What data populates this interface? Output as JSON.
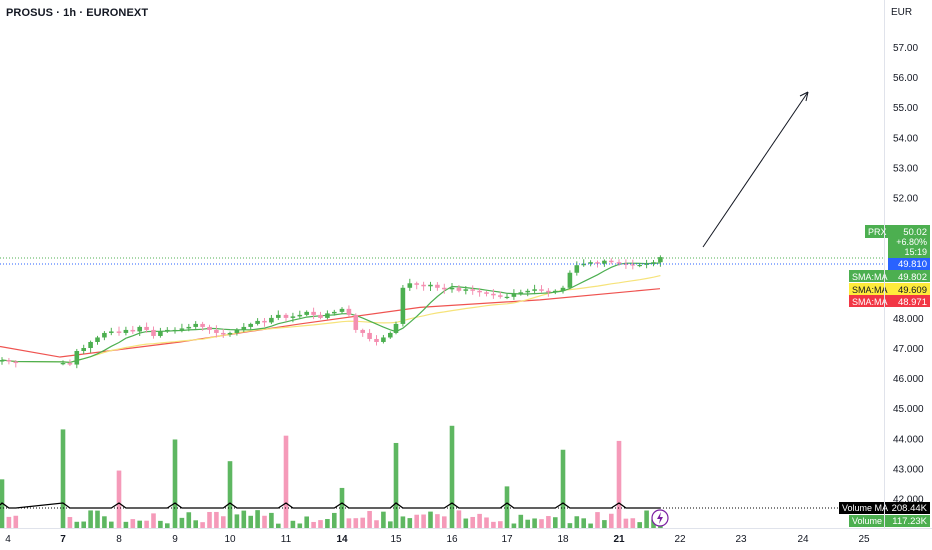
{
  "header": {
    "title": "PROSUS · 1h · EURONEXT",
    "currency": "EUR"
  },
  "price_axis": {
    "ticks": [
      "57.00",
      "56.00",
      "55.00",
      "54.00",
      "53.00",
      "52.00",
      "48.000",
      "47.000",
      "46.000",
      "45.000",
      "44.000",
      "43.000",
      "42.000"
    ],
    "tick_values": [
      57,
      56,
      55,
      54,
      53,
      52,
      48,
      47,
      46,
      45,
      44,
      43,
      42
    ]
  },
  "time_axis": {
    "ticks": [
      "4",
      "7",
      "8",
      "9",
      "10",
      "11",
      "14",
      "15",
      "16",
      "17",
      "18",
      "21",
      "22",
      "23",
      "24",
      "25"
    ],
    "bold": [
      "7",
      "14",
      "21"
    ]
  },
  "labels": {
    "last_price": {
      "name": "PRX",
      "value": "50.02",
      "change": "+6.80%",
      "countdown": "15:19",
      "color": "#4caf50"
    },
    "blue_line": {
      "value": "49.810",
      "color": "#2962ff"
    },
    "sma_fast": {
      "name": "SMA:MA",
      "value": "49.802",
      "color": "#4caf50"
    },
    "sma_mid": {
      "name": "SMA:MA",
      "value": "49.609",
      "color": "#ffeb3b"
    },
    "sma_slow": {
      "name": "SMA:MA",
      "value": "48.971",
      "color": "#f23645"
    },
    "volume_ma": {
      "name": "Volume MA",
      "value": "208.44K",
      "color": "#000000"
    },
    "volume": {
      "name": "Volume",
      "value": "117.23K",
      "color": "#4caf50"
    }
  },
  "colors": {
    "up": "#4caf50",
    "down": "#f48fb1",
    "volume_up": "#4caf50",
    "volume_down": "#f48fb1",
    "sma_fast": "#4caf50",
    "sma_mid": "#f6e37a",
    "sma_slow": "#ef5350"
  },
  "chart_data": {
    "type": "candlestick",
    "symbol": "PROSUS",
    "interval": "1h",
    "exchange": "EURONEXT",
    "ylim": [
      41.5,
      57.8
    ],
    "last_close": 50.02,
    "closes_by_day": {
      "4": [
        46.6,
        46.55,
        46.5
      ],
      "7": [
        46.5,
        46.45,
        46.9,
        47.0,
        47.2,
        47.35,
        47.5,
        47.55
      ],
      "8": [
        47.5,
        47.6,
        47.55,
        47.7,
        47.6,
        47.4,
        47.55,
        47.6
      ],
      "9": [
        47.6,
        47.65,
        47.7,
        47.8,
        47.7,
        47.6,
        47.5,
        47.45
      ],
      "10": [
        47.5,
        47.6,
        47.7,
        47.8,
        47.9,
        47.85,
        48.0,
        48.1
      ],
      "11": [
        48.0,
        48.05,
        48.1,
        48.2,
        48.1,
        48.0,
        48.15,
        48.2
      ],
      "14": [
        48.3,
        48.1,
        47.6,
        47.5,
        47.3,
        47.2,
        47.35,
        47.5
      ],
      "15": [
        47.8,
        49.0,
        49.15,
        49.1,
        49.05,
        49.1,
        49.0,
        48.95
      ],
      "16": [
        49.0,
        48.9,
        48.95,
        48.9,
        48.85,
        48.8,
        48.75,
        48.7
      ],
      "17": [
        48.7,
        48.8,
        48.85,
        48.9,
        48.95,
        48.9,
        48.85,
        48.9
      ],
      "18": [
        49.0,
        49.5,
        49.75,
        49.8,
        49.85,
        49.8,
        49.9,
        49.85
      ],
      "21": [
        49.8,
        49.78,
        49.75,
        49.76,
        49.8,
        49.85,
        50.02
      ]
    },
    "sma_fast_end": 49.802,
    "sma_mid_end": 49.609,
    "sma_slow_end": 48.971,
    "volume_ma_last": "208.44K",
    "volume_last": "117.23K",
    "annotation": "upward arrow projecting to ~55.6"
  }
}
